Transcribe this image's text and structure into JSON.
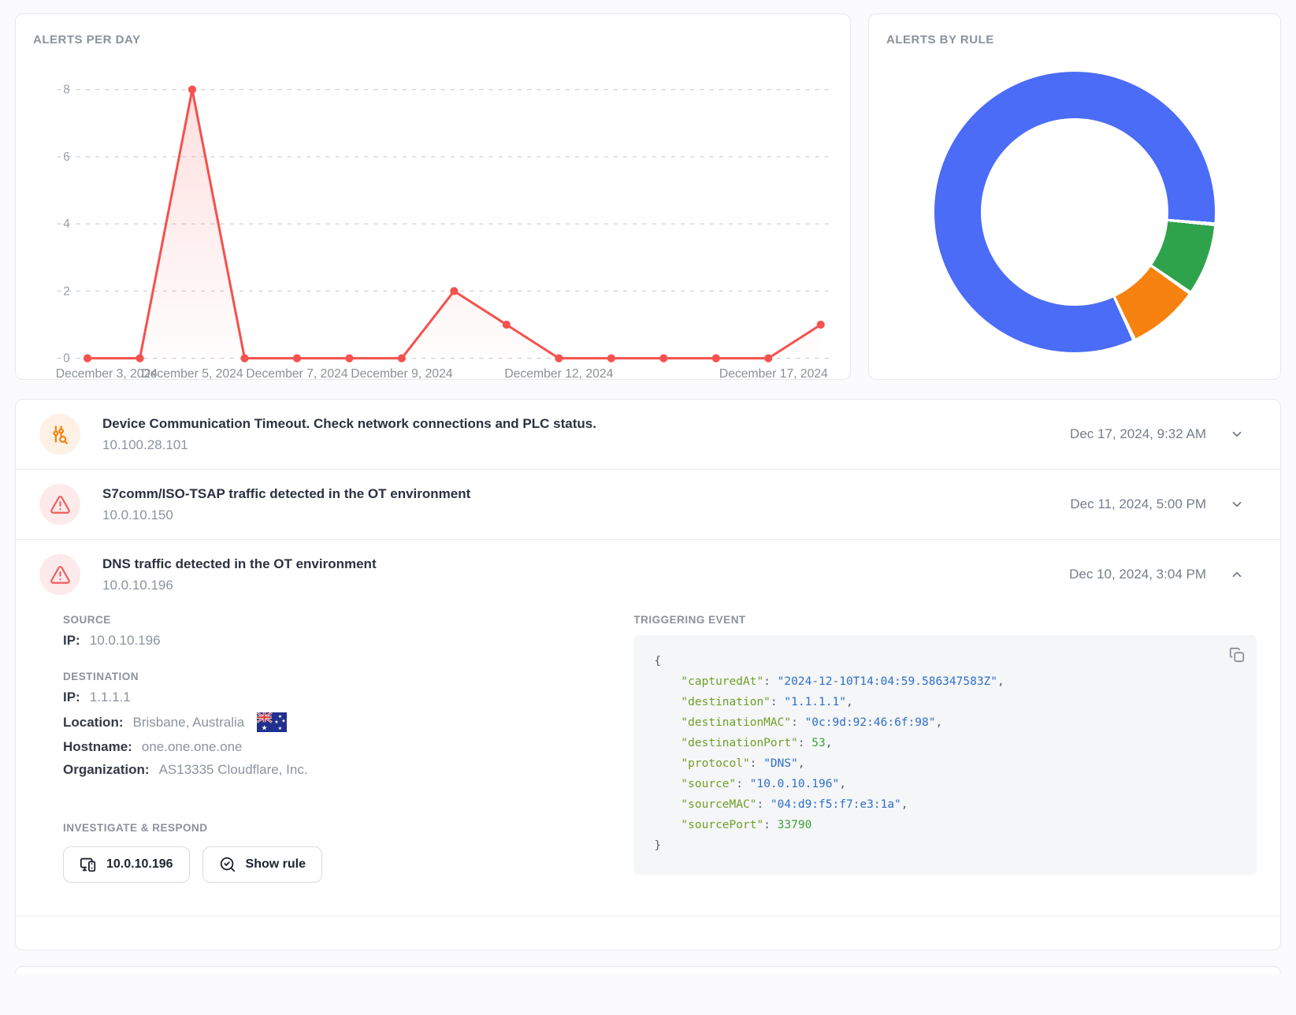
{
  "cards": {
    "alerts_per_day": {
      "title": "ALERTS PER DAY"
    },
    "alerts_by_rule": {
      "title": "ALERTS BY RULE"
    }
  },
  "chart_data": [
    {
      "type": "line",
      "title": "ALERTS PER DAY",
      "x": [
        "December 3, 2024",
        "December 4, 2024",
        "December 5, 2024",
        "December 6, 2024",
        "December 7, 2024",
        "December 8, 2024",
        "December 9, 2024",
        "December 10, 2024",
        "December 11, 2024",
        "December 12, 2024",
        "December 13, 2024",
        "December 14, 2024",
        "December 15, 2024",
        "December 16, 2024",
        "December 17, 2024"
      ],
      "values": [
        0,
        0,
        8,
        0,
        0,
        0,
        0,
        2,
        1,
        0,
        0,
        0,
        0,
        0,
        1
      ],
      "yticks": [
        0,
        2,
        4,
        6,
        8
      ],
      "ylim": [
        0,
        8
      ],
      "x_tick_indices": [
        0,
        2,
        4,
        6,
        9,
        14
      ],
      "x_tick_labels": [
        "December 3, 2024",
        "December 5, 2024",
        "December 7, 2024",
        "December 9, 2024",
        "December 12, 2024",
        "December 17, 2024"
      ],
      "grid": "horizontal-dashed",
      "legend": "none",
      "line_color": "#f4524e"
    },
    {
      "type": "donut",
      "title": "ALERTS BY RULE",
      "slices": [
        {
          "value": 1,
          "color": "#2fa24c"
        },
        {
          "value": 1,
          "color": "#f8820f"
        },
        {
          "value": 10,
          "color": "#4a6cf7"
        }
      ],
      "total": 12,
      "start_angle_deg": 95,
      "legend": "none"
    }
  ],
  "alert_list": {
    "items": [
      {
        "title": "Device Communication Timeout. Check network connections and PLC status.",
        "ip": "10.100.28.101",
        "timestamp": "Dec 17, 2024, 9:32 AM",
        "icon": "sliders-search-icon",
        "icon_color": "#f8820f",
        "expanded": false
      },
      {
        "title": "S7comm/ISO-TSAP traffic detected in the OT environment",
        "ip": "10.0.10.150",
        "timestamp": "Dec 11, 2024, 5:00 PM",
        "icon": "warning-triangle-icon",
        "icon_color": "#f15b5b",
        "expanded": false
      },
      {
        "title": "DNS traffic detected in the OT environment",
        "ip": "10.0.10.196",
        "timestamp": "Dec 10, 2024, 3:04 PM",
        "icon": "warning-triangle-icon",
        "icon_color": "#f15b5b",
        "expanded": true
      }
    ],
    "expanded_detail": {
      "source_label": "SOURCE",
      "source": {
        "ip_label": "IP:",
        "ip": "10.0.10.196"
      },
      "destination_label": "DESTINATION",
      "destination": {
        "ip_label": "IP:",
        "ip": "1.1.1.1",
        "location_label": "Location:",
        "location": "Brisbane, Australia",
        "flag": "australia-flag",
        "hostname_label": "Hostname:",
        "hostname": "one.one.one.one",
        "organization_label": "Organization:",
        "organization": "AS13335 Cloudflare, Inc."
      },
      "triggering_event_label": "TRIGGERING EVENT",
      "triggering_event": {
        "capturedAt": "2024-12-10T14:04:59.586347583Z",
        "destination": "1.1.1.1",
        "destinationMAC": "0c:9d:92:46:6f:98",
        "destinationPort": 53,
        "protocol": "DNS",
        "source": "10.0.10.196",
        "sourceMAC": "04:d9:f5:f7:e3:1a",
        "sourcePort": 33790
      },
      "investigate_label": "INVESTIGATE & RESPOND",
      "buttons": [
        {
          "label": "10.0.10.196",
          "icon": "devices-icon"
        },
        {
          "label": "Show rule",
          "icon": "search-check-icon"
        }
      ]
    }
  },
  "colors": {
    "accent_red": "#f4524e",
    "donut_blue": "#4a6cf7",
    "donut_green": "#2fa24c",
    "donut_orange": "#f8820f",
    "code_key": "#6f9f27",
    "code_string": "#2e6fc9",
    "code_number": "#3da03d"
  }
}
